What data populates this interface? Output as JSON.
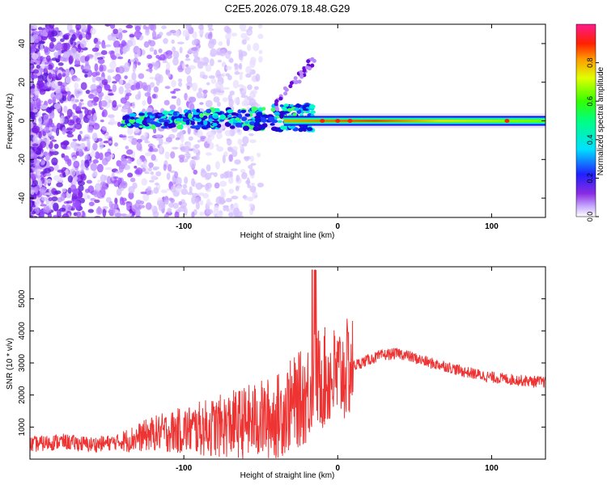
{
  "chart_data": [
    {
      "type": "heatmap",
      "title": "C2E5.2026.079.18.48.G29",
      "xlabel": "Height of straight line (km)",
      "ylabel": "Frequency (Hz)",
      "xlim": [
        -200,
        135
      ],
      "ylim": [
        -50,
        50
      ],
      "xticks": [
        "-100",
        "0",
        "100"
      ],
      "yticks": [
        "-40",
        "-20",
        "0",
        "20",
        "40"
      ],
      "colorbar": {
        "label": "Normalized spectral amplitude",
        "range": [
          0,
          1
        ],
        "ticks": [
          "0.0",
          "0.2",
          "0.4",
          "0.6",
          "0.8"
        ]
      },
      "description": "Scatter of weak noise at low heights; signal near 0 Hz strengthens from about -140 km and becomes a narrow strong carrier above about -20 km"
    },
    {
      "type": "line",
      "xlabel": "Height of straight line (km)",
      "ylabel": "SNR (10 * v/v)",
      "xlim": [
        -200,
        135
      ],
      "ylim": [
        0,
        6000
      ],
      "xticks": [
        "-100",
        "0",
        "100"
      ],
      "yticks": [
        "1000",
        "2000",
        "3000",
        "4000",
        "5000"
      ],
      "series": [
        {
          "name": "SNR",
          "color": "#ee3333",
          "x": [
            -200,
            -180,
            -160,
            -140,
            -120,
            -100,
            -80,
            -60,
            -40,
            -30,
            -20,
            -15,
            -10,
            0,
            10,
            20,
            30,
            40,
            50,
            60,
            70,
            80,
            90,
            100,
            110,
            120,
            135
          ],
          "y": [
            450,
            550,
            450,
            550,
            800,
            900,
            1000,
            1150,
            1300,
            1700,
            2000,
            2600,
            2500,
            2600,
            2900,
            3100,
            3250,
            3300,
            3150,
            3000,
            2900,
            2750,
            2650,
            2550,
            2500,
            2450,
            2400
          ]
        }
      ]
    }
  ]
}
